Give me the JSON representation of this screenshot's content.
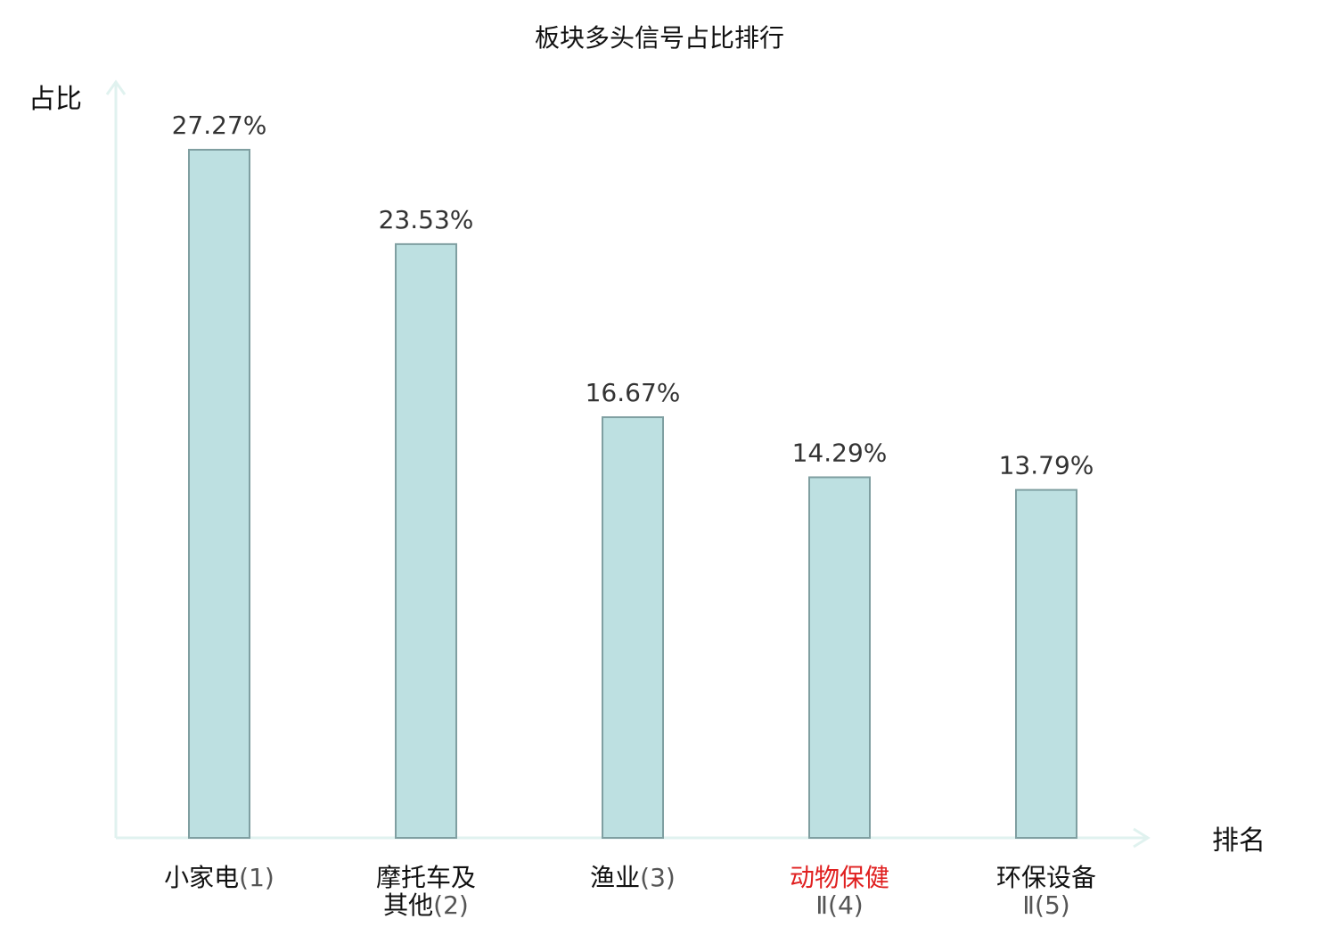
{
  "chart_data": {
    "type": "bar",
    "title": "板块多头信号占比排行",
    "ylabel": "占比",
    "xlabel": "排名",
    "ylim": [
      0,
      30
    ],
    "grid": false,
    "categories": [
      "小家电(1)",
      "摩托车及其他(2)",
      "渔业(3)",
      "动物保健Ⅱ(4)",
      "环保设备Ⅱ(5)"
    ],
    "category_lines": [
      [
        {
          "main": "小家电",
          "num": "(1)"
        }
      ],
      [
        {
          "main": "摩托车及",
          "num": ""
        },
        {
          "main": "其他",
          "num": "(2)"
        }
      ],
      [
        {
          "main": "渔业",
          "num": "(3)"
        }
      ],
      [
        {
          "main": "动物保健",
          "num": ""
        },
        {
          "main": "",
          "num": "Ⅱ(4)"
        }
      ],
      [
        {
          "main": "环保设备",
          "num": ""
        },
        {
          "main": "",
          "num": "Ⅱ(5)"
        }
      ]
    ],
    "values": [
      27.27,
      23.53,
      16.67,
      14.29,
      13.79
    ],
    "value_labels": [
      "27.27%",
      "23.53%",
      "16.67%",
      "14.29%",
      "13.79%"
    ],
    "highlight_index": 3,
    "colors": {
      "bar_fill": "#bde0e1",
      "bar_stroke": "#7f9fa1",
      "axis": "#e0f2ef",
      "highlight": "#e02020",
      "text": "#111111",
      "value_text": "#333333"
    }
  }
}
